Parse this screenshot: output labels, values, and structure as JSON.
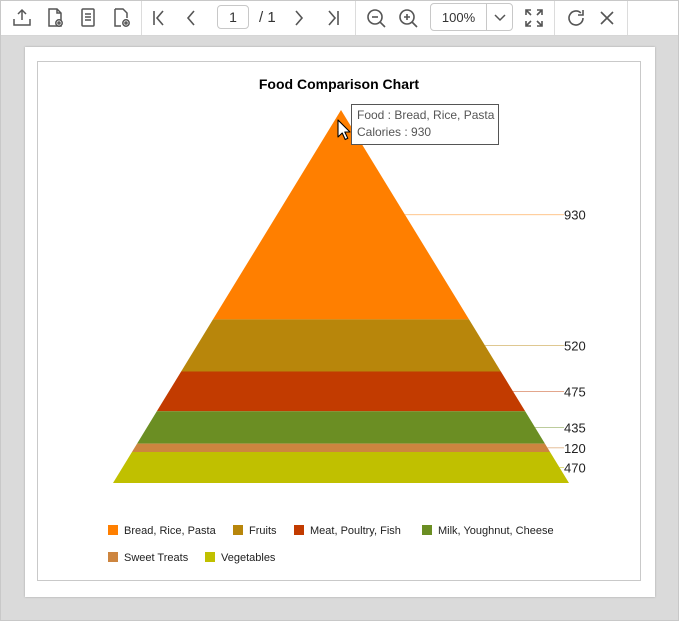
{
  "toolbar": {
    "current_page": "1",
    "total_pages": "/ 1",
    "zoom": "100%",
    "icons": [
      "export-icon",
      "save-icon",
      "document-icon",
      "settings-document-icon",
      "first-page-icon",
      "previous-page-icon",
      "next-page-icon",
      "last-page-icon",
      "zoom-out-icon",
      "zoom-in-icon",
      "chevron-down-icon",
      "fit-page-icon",
      "refresh-icon",
      "close-icon"
    ]
  },
  "tooltip": {
    "line1": "Food : Bread, Rice, Pasta",
    "line2": "Calories : 930"
  },
  "chart_data": {
    "type": "pyramid",
    "title": "Food Comparison Chart",
    "categories": [
      "Bread, Rice, Pasta",
      "Fruits",
      "Meat, Poultry, Fish",
      "Milk, Youghnut, Cheese",
      "Sweet Treats",
      "Vegetables"
    ],
    "values": [
      930,
      520,
      475,
      435,
      120,
      470
    ],
    "colors": [
      "#FF7F00",
      "#B8860B",
      "#C23B00",
      "#6B8E23",
      "#CD853F",
      "#C0C000"
    ],
    "data_labels": [
      "930",
      "520",
      "475",
      "435",
      "120",
      "470"
    ],
    "legend_position": "bottom"
  }
}
